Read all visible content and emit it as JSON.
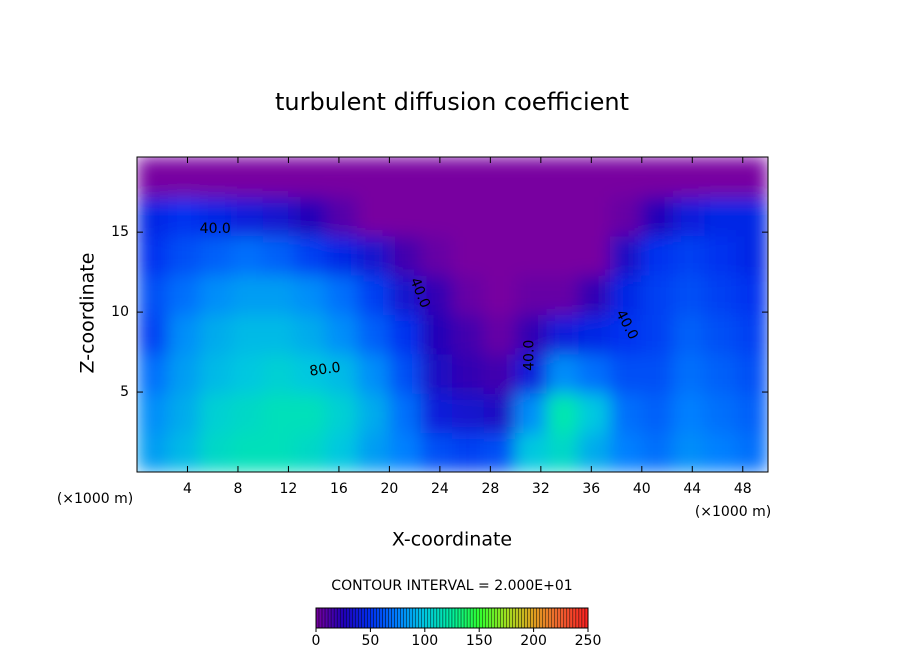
{
  "chart_data": {
    "type": "contour",
    "title": "turbulent diffusion coefficient",
    "x_label": "X-coordinate",
    "y_label": "Z-coordinate",
    "x_unit": "(×1000 m)",
    "y_unit": "(×1000 m)",
    "xlim": [
      0,
      50
    ],
    "ylim": [
      0,
      19.7
    ],
    "xticks": [
      4,
      8,
      12,
      16,
      20,
      24,
      28,
      32,
      36,
      40,
      44,
      48
    ],
    "yticks": [
      5,
      10,
      15
    ],
    "values": [
      [
        85,
        95,
        110,
        115,
        115,
        110,
        100,
        85,
        75,
        60,
        55,
        60,
        100,
        110,
        90,
        75,
        70,
        80,
        75,
        70
      ],
      [
        80,
        90,
        105,
        110,
        115,
        115,
        105,
        90,
        70,
        40,
        35,
        30,
        80,
        120,
        100,
        70,
        65,
        75,
        70,
        65
      ],
      [
        70,
        85,
        95,
        100,
        105,
        100,
        95,
        80,
        60,
        30,
        20,
        15,
        40,
        80,
        70,
        60,
        60,
        70,
        65,
        60
      ],
      [
        55,
        80,
        90,
        95,
        95,
        90,
        80,
        65,
        50,
        25,
        15,
        5,
        20,
        40,
        45,
        50,
        55,
        65,
        60,
        55
      ],
      [
        60,
        70,
        80,
        85,
        85,
        80,
        70,
        55,
        35,
        20,
        5,
        0,
        5,
        5,
        20,
        45,
        55,
        60,
        55,
        50
      ],
      [
        50,
        60,
        65,
        70,
        65,
        55,
        45,
        35,
        15,
        5,
        0,
        0,
        0,
        0,
        0,
        30,
        50,
        55,
        50,
        45
      ],
      [
        45,
        50,
        45,
        40,
        35,
        25,
        10,
        0,
        0,
        0,
        0,
        0,
        0,
        0,
        0,
        5,
        25,
        40,
        45,
        45
      ],
      [
        0,
        0,
        0,
        0,
        0,
        0,
        0,
        0,
        0,
        0,
        0,
        0,
        0,
        0,
        0,
        0,
        0,
        0,
        0,
        0
      ]
    ],
    "contour_labels": [
      {
        "value": 40,
        "label": "40.0",
        "x": 6.2,
        "z": 15.2
      },
      {
        "value": 40,
        "label": "40.0",
        "x": 22.4,
        "z": 11.2
      },
      {
        "value": 80,
        "label": "80.0",
        "x": 14.9,
        "z": 6.4
      },
      {
        "value": 40,
        "label": "40.0",
        "x": 31.1,
        "z": 7.3
      },
      {
        "value": 40,
        "label": "40.0",
        "x": 38.8,
        "z": 9.2
      }
    ],
    "contour_interval_label": "CONTOUR INTERVAL = 2.000E+01",
    "zlim": [
      0,
      250
    ],
    "zticks": [
      0,
      50,
      100,
      150,
      200,
      250
    ],
    "colorscale": [
      "#7800a0",
      "#2000b8",
      "#0030f0",
      "#0080ff",
      "#00c8e0",
      "#00f0a0",
      "#30ff30",
      "#a0e020",
      "#e0a020",
      "#f06030",
      "#ff2020"
    ]
  }
}
